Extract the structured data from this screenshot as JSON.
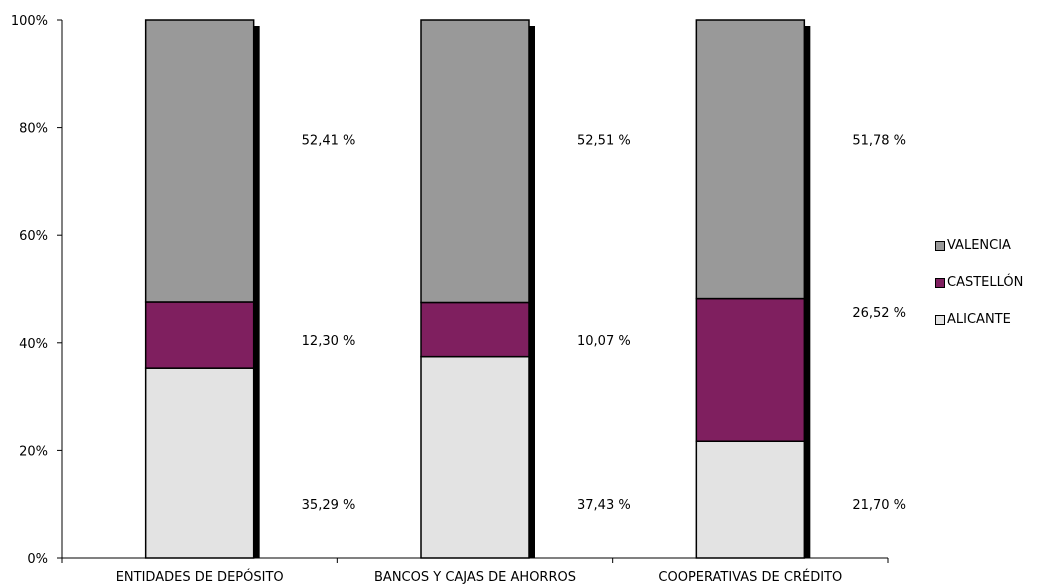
{
  "chart_data": {
    "type": "bar",
    "stacked": "percent",
    "categories": [
      "ENTIDADES DE DEPÓSITO",
      "BANCOS Y CAJAS DE AHORROS",
      "COOPERATIVAS DE CRÉDITO"
    ],
    "series": [
      {
        "name": "ALICANTE",
        "color": "#e3e3e3",
        "values": [
          35.29,
          37.43,
          21.7
        ],
        "labels": [
          "35,29 %",
          "37,43 %",
          "21,70 %"
        ]
      },
      {
        "name": "CASTELLÓN",
        "color": "#7f1f5f",
        "values": [
          12.3,
          10.07,
          26.52
        ],
        "labels": [
          "12,30 %",
          "10,07 %",
          "26,52 %"
        ]
      },
      {
        "name": "VALENCIA",
        "color": "#999999",
        "values": [
          52.41,
          52.51,
          51.78
        ],
        "labels": [
          "52,41 %",
          "52,51 %",
          "51,78 %"
        ]
      }
    ],
    "y_ticks": [
      "0%",
      "20%",
      "40%",
      "60%",
      "80%",
      "100%"
    ],
    "ylim": [
      0,
      100
    ],
    "legend_position": "right",
    "grid": false
  },
  "legend_order": [
    "VALENCIA",
    "CASTELLÓN",
    "ALICANTE"
  ]
}
